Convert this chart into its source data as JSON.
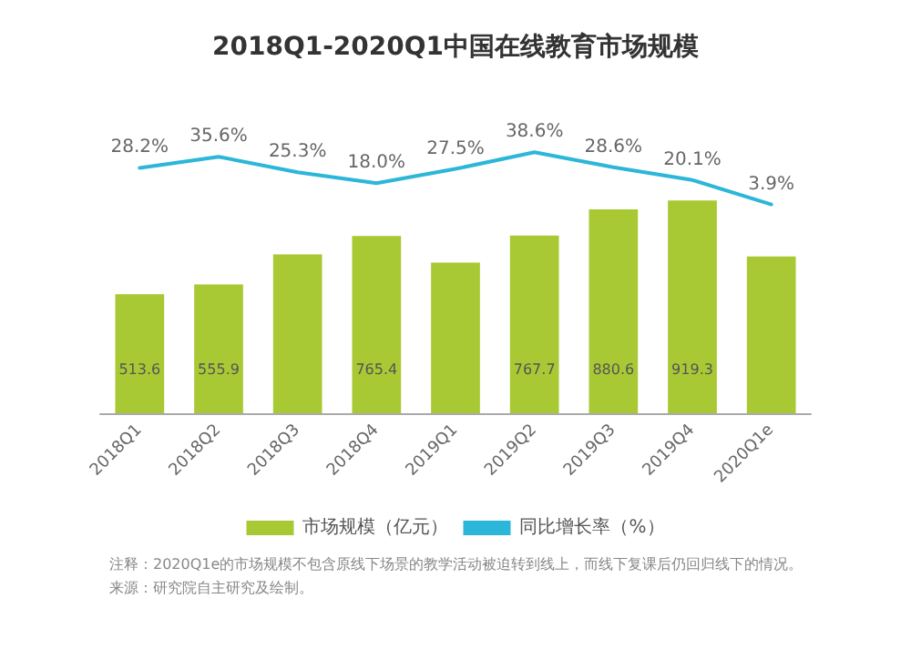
{
  "chart_data": {
    "type": "bar",
    "title": "2018Q1-2020Q1中国在线教育市场规模",
    "categories": [
      "2018Q1",
      "2018Q2",
      "2018Q3",
      "2018Q4",
      "2019Q1",
      "2019Q2",
      "2019Q3",
      "2019Q4",
      "2020Q1e"
    ],
    "series": [
      {
        "name": "市场规模（亿元）",
        "color": "#a9c934",
        "values": [
          513.6,
          555.9,
          686,
          765.4,
          651,
          767.7,
          880.6,
          919.3,
          677
        ],
        "value_labels": [
          "513.6",
          "555.9",
          null,
          "765.4",
          null,
          "767.7",
          "880.6",
          "919.3",
          null
        ]
      },
      {
        "name": "同比增长率（%）",
        "type": "line",
        "axis": "y2",
        "color": "#2cb6d9",
        "values": [
          28.2,
          35.6,
          25.3,
          18.0,
          27.5,
          38.6,
          28.6,
          20.1,
          3.9
        ],
        "value_labels": [
          "28.2%",
          "35.6%",
          "25.3%",
          "18.0%",
          "27.5%",
          "38.6%",
          "28.6%",
          "20.1%",
          "3.9%"
        ]
      }
    ],
    "legend": "bottom",
    "grid": false,
    "marker": "none",
    "line_style": "solid",
    "annotations": [
      "注释：2020Q1e的市场规模不包含原线下场景的教学活动被迫转到线上，而线下复课后仍回归线下的情况。",
      "来源：研究院自主研究及绘制。"
    ]
  }
}
